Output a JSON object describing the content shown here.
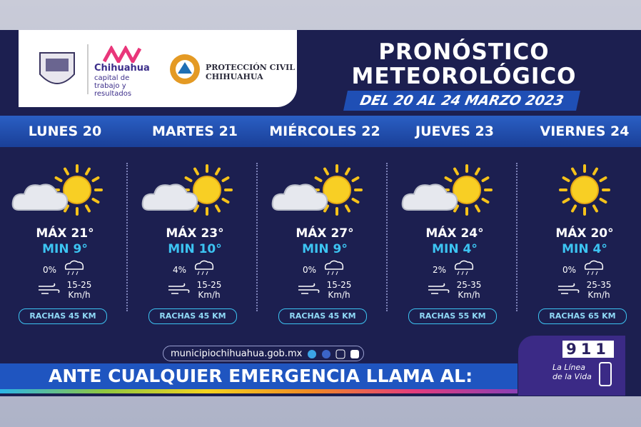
{
  "header": {
    "city": "Chihuahua",
    "slogan": "capital de trabajo y resultados",
    "agency": "PROTECCIÓN CIVIL",
    "agency_city": "CHIHUAHUA",
    "title": [
      "PRONÓSTICO",
      "METEOROLÓGICO"
    ],
    "date": "DEL 20 AL 24 MARZO 2023"
  },
  "days": [
    {
      "name": "LUNES 20",
      "max": "MÁX 21°",
      "min": "MIN 9°",
      "rain": "0%",
      "wind": "15-25",
      "unit": "Km/h",
      "gusts": "RACHAS 45 KM"
    },
    {
      "name": "MARTES 21",
      "max": "MÁX 23°",
      "min": "MIN 10°",
      "rain": "4%",
      "wind": "15-25",
      "unit": "Km/h",
      "gusts": "RACHAS 45 KM"
    },
    {
      "name": "MIÉRCOLES 22",
      "max": "MÁX 27°",
      "min": "MIN 9°",
      "rain": "0%",
      "wind": "15-25",
      "unit": "Km/h",
      "gusts": "RACHAS 45 KM"
    },
    {
      "name": "JUEVES 23",
      "max": "MÁX 24°",
      "min": "MIN 4°",
      "rain": "2%",
      "wind": "25-35",
      "unit": "Km/h",
      "gusts": "RACHAS 55 KM"
    },
    {
      "name": "VIERNES 24",
      "max": "MÁX 20°",
      "min": "MIN 4°",
      "rain": "0%",
      "wind": "25-35",
      "unit": "Km/h",
      "gusts": "RACHAS 65 KM"
    }
  ],
  "footer": {
    "website": "municipiochihuahua.gob.mx",
    "banner": "ANTE CUALQUIER EMERGENCIA LLAMA AL:",
    "phone": "911",
    "line": [
      "La Línea",
      "de la Vida"
    ]
  }
}
